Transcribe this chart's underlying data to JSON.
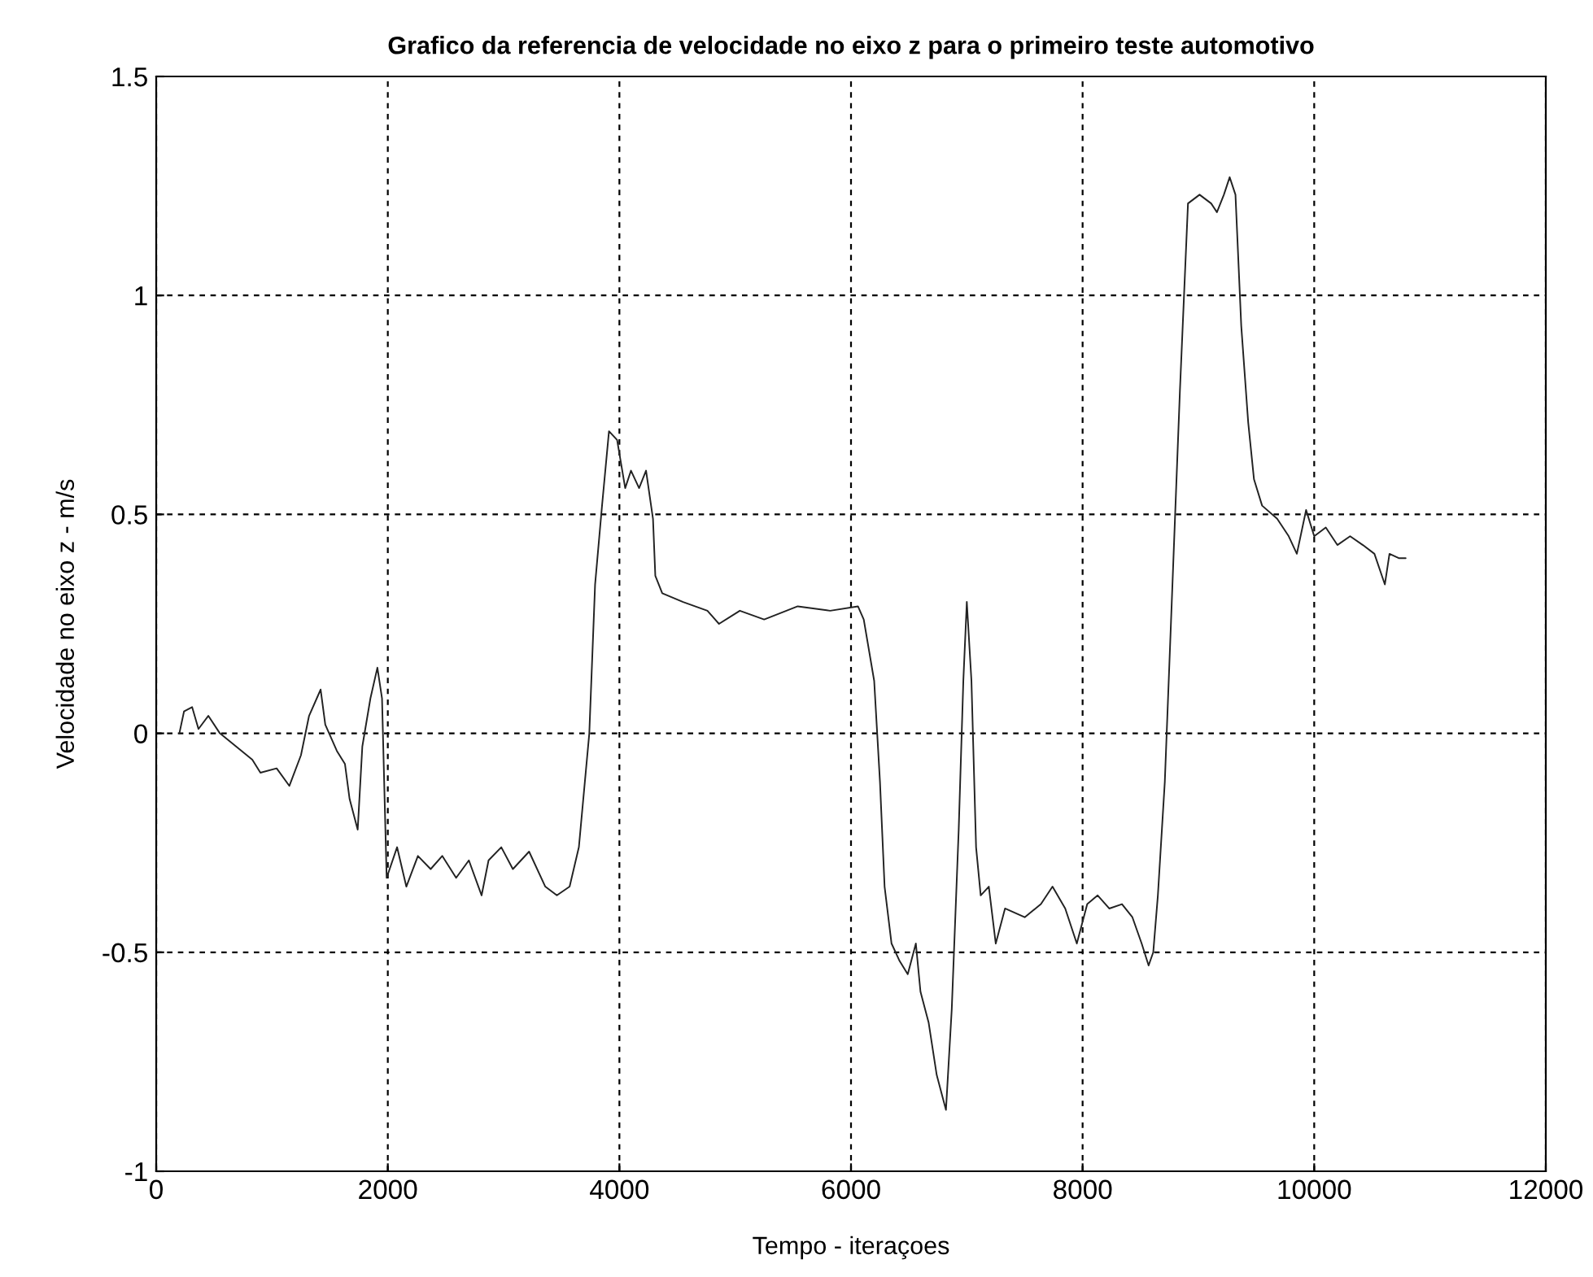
{
  "chart_data": {
    "type": "line",
    "title": "Grafico da referencia de velocidade no eixo z para o primeiro teste automotivo",
    "xlabel": "Tempo - iteraçoes",
    "ylabel": "Velocidade no eixo z - m/s",
    "xlim": [
      0,
      12000
    ],
    "xticks": [
      0,
      2000,
      4000,
      6000,
      8000,
      10000,
      12000
    ],
    "ylim": [
      -1,
      1.5
    ],
    "yticks": [
      -1,
      -0.5,
      0,
      0.5,
      1,
      1.5
    ],
    "grid": true,
    "line_style": "solid",
    "series": [
      {
        "color": "#222222",
        "x": [
          200,
          240,
          310,
          365,
          450,
          550,
          690,
          830,
          900,
          1040,
          1150,
          1250,
          1320,
          1420,
          1460,
          1560,
          1630,
          1670,
          1740,
          1780,
          1850,
          1910,
          1950,
          1990,
          2080,
          2160,
          2260,
          2370,
          2470,
          2590,
          2700,
          2810,
          2870,
          2980,
          3080,
          3220,
          3360,
          3460,
          3570,
          3650,
          3740,
          3790,
          3850,
          3910,
          3980,
          4050,
          4100,
          4170,
          4230,
          4290,
          4310,
          4370,
          4550,
          4760,
          4860,
          5040,
          5250,
          5540,
          5820,
          6060,
          6110,
          6200,
          6250,
          6290,
          6350,
          6420,
          6490,
          6560,
          6600,
          6670,
          6740,
          6790,
          6820,
          6870,
          6930,
          6970,
          7000,
          7040,
          7080,
          7120,
          7190,
          7250,
          7330,
          7500,
          7640,
          7740,
          7850,
          7950,
          8040,
          8130,
          8230,
          8340,
          8430,
          8510,
          8570,
          8610,
          8650,
          8710,
          8770,
          8840,
          8910,
          9010,
          9110,
          9160,
          9220,
          9270,
          9320,
          9370,
          9430,
          9480,
          9550,
          9680,
          9780,
          9850,
          9930,
          10000,
          10100,
          10200,
          10310,
          10420,
          10520,
          10610,
          10650,
          10730,
          10790
        ],
        "values": [
          0.0,
          0.05,
          0.06,
          0.01,
          0.04,
          0.0,
          -0.03,
          -0.06,
          -0.09,
          -0.08,
          -0.12,
          -0.05,
          0.04,
          0.1,
          0.02,
          -0.04,
          -0.07,
          -0.15,
          -0.22,
          -0.03,
          0.08,
          0.15,
          0.08,
          -0.33,
          -0.26,
          -0.35,
          -0.28,
          -0.31,
          -0.28,
          -0.33,
          -0.29,
          -0.37,
          -0.29,
          -0.26,
          -0.31,
          -0.27,
          -0.35,
          -0.37,
          -0.35,
          -0.26,
          0.0,
          0.34,
          0.52,
          0.69,
          0.67,
          0.56,
          0.6,
          0.56,
          0.6,
          0.49,
          0.36,
          0.32,
          0.3,
          0.28,
          0.25,
          0.28,
          0.26,
          0.29,
          0.28,
          0.29,
          0.26,
          0.12,
          -0.11,
          -0.35,
          -0.48,
          -0.52,
          -0.55,
          -0.48,
          -0.59,
          -0.66,
          -0.78,
          -0.83,
          -0.86,
          -0.63,
          -0.22,
          0.12,
          0.3,
          0.12,
          -0.26,
          -0.37,
          -0.35,
          -0.48,
          -0.4,
          -0.42,
          -0.39,
          -0.35,
          -0.4,
          -0.48,
          -0.39,
          -0.37,
          -0.4,
          -0.39,
          -0.42,
          -0.48,
          -0.53,
          -0.5,
          -0.37,
          -0.11,
          0.3,
          0.78,
          1.21,
          1.23,
          1.21,
          1.19,
          1.23,
          1.27,
          1.23,
          0.93,
          0.71,
          0.58,
          0.52,
          0.49,
          0.45,
          0.41,
          0.51,
          0.45,
          0.47,
          0.43,
          0.45,
          0.43,
          0.41,
          0.34,
          0.41,
          0.4,
          0.4
        ]
      }
    ]
  }
}
